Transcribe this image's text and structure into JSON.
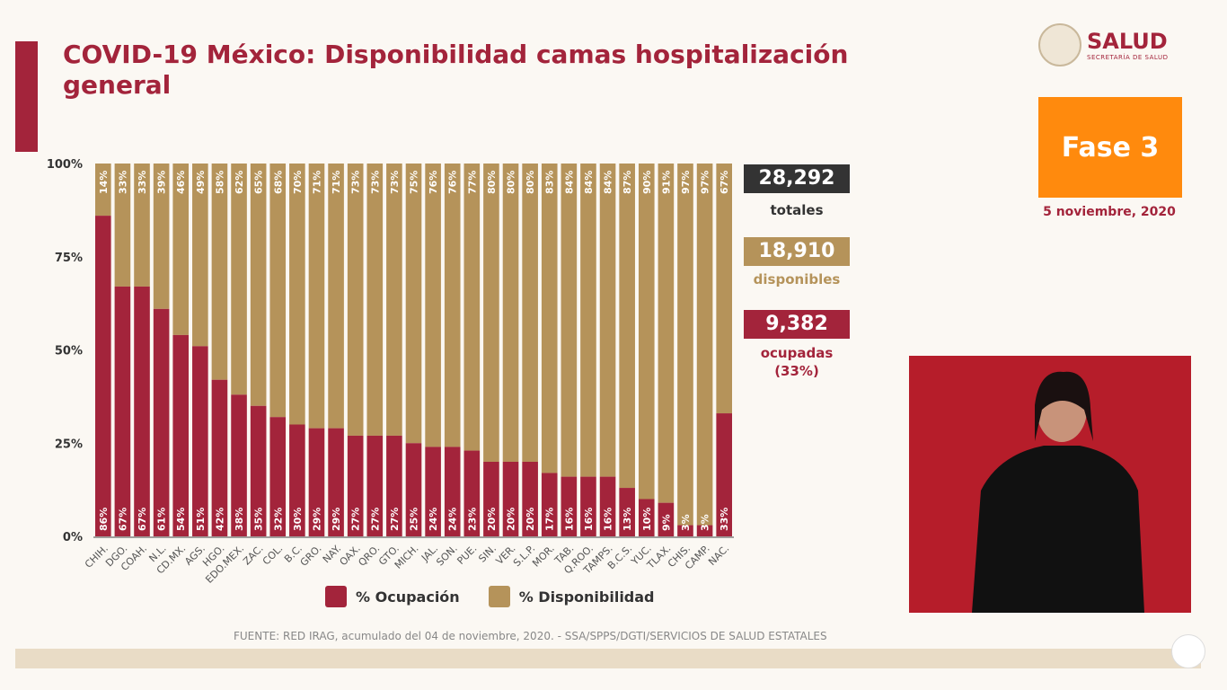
{
  "title": "COVID-19 México: Disponibilidad camas hospitalización general",
  "logo": {
    "name": "SALUD",
    "subtitle": "SECRETARÍA DE SALUD"
  },
  "phase": "Fase 3",
  "date": "5 noviembre, 2020",
  "stats": {
    "total": {
      "value": "28,292",
      "label": "totales",
      "color": "#333333"
    },
    "available": {
      "value": "18,910",
      "label": "disponibles",
      "color": "#b5935a"
    },
    "occupied": {
      "value": "9,382",
      "label": "ocupadas",
      "pct": "(33%)",
      "color": "#a3243b"
    }
  },
  "source": "FUENTE: RED IRAG, acumulado del 04 de noviembre, 2020. -  SSA/SPPS/DGTI/SERVICIOS DE SALUD ESTATALES",
  "chart_data": {
    "type": "bar",
    "stacked": true,
    "categories": [
      "CHIH.",
      "DGO.",
      "COAH.",
      "N.L.",
      "CD.MX.",
      "AGS.",
      "HGO.",
      "EDO.MEX.",
      "ZAC.",
      "COL.",
      "B.C.",
      "GRO.",
      "NAY.",
      "OAX.",
      "QRO.",
      "GTO.",
      "MICH.",
      "JAL.",
      "SON.",
      "PUE.",
      "SIN.",
      "VER.",
      "S.L.P.",
      "MOR.",
      "TAB.",
      "Q.ROO.",
      "TAMPS.",
      "B.C.S.",
      "YUC.",
      "TLAX.",
      "CHIS.",
      "CAMP.",
      "NAC."
    ],
    "series": [
      {
        "name": "% Ocupación",
        "color": "#a3243b",
        "values": [
          86,
          67,
          67,
          61,
          54,
          51,
          42,
          38,
          35,
          32,
          30,
          29,
          29,
          27,
          27,
          27,
          25,
          24,
          24,
          23,
          20,
          20,
          20,
          17,
          16,
          16,
          16,
          13,
          10,
          9,
          3,
          3,
          33
        ]
      },
      {
        "name": "% Disponibilidad",
        "color": "#b5935a",
        "values": [
          14,
          33,
          33,
          39,
          46,
          49,
          58,
          62,
          65,
          68,
          70,
          71,
          71,
          73,
          73,
          73,
          75,
          76,
          76,
          77,
          80,
          80,
          80,
          83,
          84,
          84,
          84,
          87,
          90,
          91,
          97,
          97,
          67
        ]
      }
    ],
    "yticks": [
      "0%",
      "25%",
      "50%",
      "75%",
      "100%"
    ],
    "ylim": [
      0,
      100
    ],
    "legend": "bottom"
  }
}
